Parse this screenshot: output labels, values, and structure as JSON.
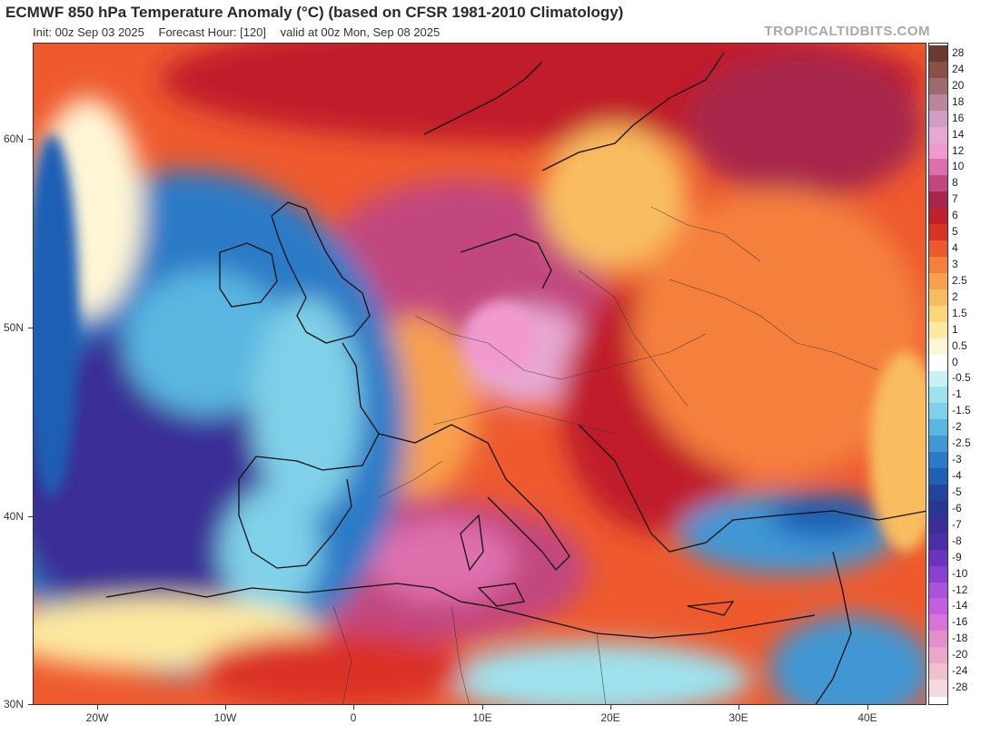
{
  "header": {
    "title": "ECMWF 850 hPa Temperature Anomaly (°C) (based on CFSR 1981-2010 Climatology)",
    "init": "Init: 00z Sep 03 2025",
    "forecast_hour": "Forecast Hour: [120]",
    "valid": "valid at 00z Mon, Sep 08 2025",
    "credit": "TROPICALTIDBITS.COM"
  },
  "map": {
    "lat_labels": [
      "60N",
      "50N",
      "40N",
      "30N"
    ],
    "lon_labels": [
      "20W",
      "10W",
      "0",
      "10E",
      "20E",
      "30E",
      "40E"
    ]
  },
  "colorbar": {
    "labels": [
      "28",
      "24",
      "20",
      "18",
      "16",
      "14",
      "12",
      "10",
      "8",
      "7",
      "6",
      "5",
      "4",
      "3",
      "2.5",
      "2",
      "1.5",
      "1",
      "0.5",
      "0",
      "-0.5",
      "-1",
      "-1.5",
      "-2",
      "-2.5",
      "-3",
      "-4",
      "-5",
      "-6",
      "-7",
      "-8",
      "-9",
      "-10",
      "-12",
      "-14",
      "-16",
      "-18",
      "-20",
      "-24",
      "-28"
    ],
    "colors": [
      "#6b3a2e",
      "#8a4f47",
      "#9f6a6e",
      "#b9869c",
      "#d39cc5",
      "#e7a8d2",
      "#f29ad0",
      "#de6fae",
      "#c2477e",
      "#a8264c",
      "#c01f2c",
      "#da3325",
      "#ee5a2e",
      "#f5803c",
      "#f7a04d",
      "#f9bd61",
      "#fbd67a",
      "#fde9a0",
      "#fff6d6",
      "#ffffff",
      "#c8f1f5",
      "#9ee2ee",
      "#7fd0e8",
      "#5ab6e0",
      "#3f97d4",
      "#2b7ac6",
      "#1f5fb4",
      "#2244a0",
      "#2a3692",
      "#3a2f96",
      "#4c2ea8",
      "#6a34bc",
      "#8a40cf",
      "#a852dd",
      "#c45ee0",
      "#d874d8",
      "#e38fcd",
      "#eaa7c9",
      "#f0c0cf",
      "#f6d8df"
    ]
  }
}
